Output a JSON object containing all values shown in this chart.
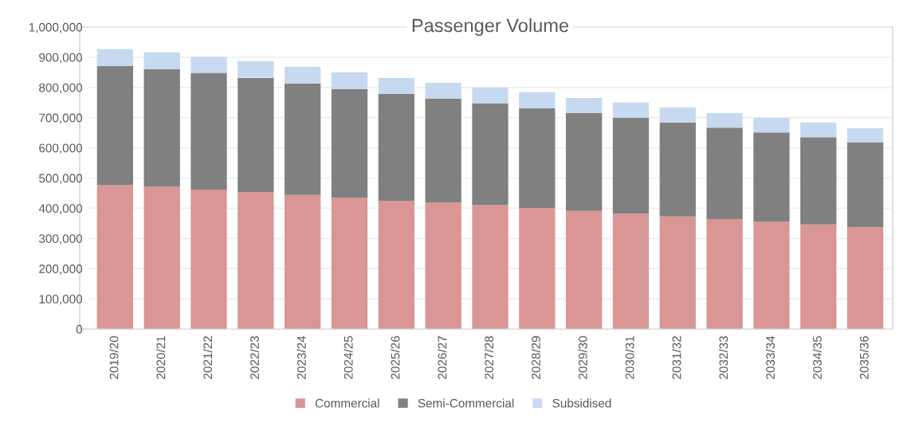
{
  "chart_data": {
    "type": "bar",
    "title": "Passenger Volume",
    "stacked": true,
    "categories": [
      "2019/20",
      "2020/21",
      "2021/22",
      "2022/23",
      "2023/24",
      "2024/25",
      "2025/26",
      "2026/27",
      "2027/28",
      "2028/29",
      "2029/30",
      "2030/31",
      "2031/32",
      "2032/33",
      "2033/34",
      "2034/35",
      "2035/36"
    ],
    "series": [
      {
        "name": "Commercial",
        "color": "#d99694",
        "values": [
          476000,
          471000,
          462000,
          453000,
          444000,
          435000,
          425000,
          419000,
          410000,
          401000,
          391000,
          382000,
          373000,
          364000,
          355000,
          346000,
          337000
        ]
      },
      {
        "name": "Semi-Commercial",
        "color": "#808080",
        "values": [
          395000,
          390000,
          386000,
          379000,
          369000,
          360000,
          354000,
          344000,
          337000,
          330000,
          324000,
          317000,
          311000,
          303000,
          296000,
          289000,
          282000
        ]
      },
      {
        "name": "Subsidised",
        "color": "#c6d9f0",
        "values": [
          56000,
          55000,
          54000,
          55000,
          55000,
          55000,
          52000,
          52000,
          53000,
          53000,
          50000,
          51000,
          50000,
          48000,
          48000,
          49000,
          46000
        ]
      }
    ],
    "ylim": [
      0,
      1000000
    ],
    "yticks": [
      {
        "value": 0,
        "label": "0"
      },
      {
        "value": 100000,
        "label": "100,000"
      },
      {
        "value": 200000,
        "label": "200,000"
      },
      {
        "value": 300000,
        "label": "300,000"
      },
      {
        "value": 400000,
        "label": "400,000"
      },
      {
        "value": 500000,
        "label": "500,000"
      },
      {
        "value": 600000,
        "label": "600,000"
      },
      {
        "value": 700000,
        "label": "700,000"
      },
      {
        "value": 800000,
        "label": "800,000"
      },
      {
        "value": 900000,
        "label": "900,000"
      },
      {
        "value": 1000000,
        "label": "1,000,000"
      }
    ],
    "grid": "y",
    "legend": "bottom"
  }
}
